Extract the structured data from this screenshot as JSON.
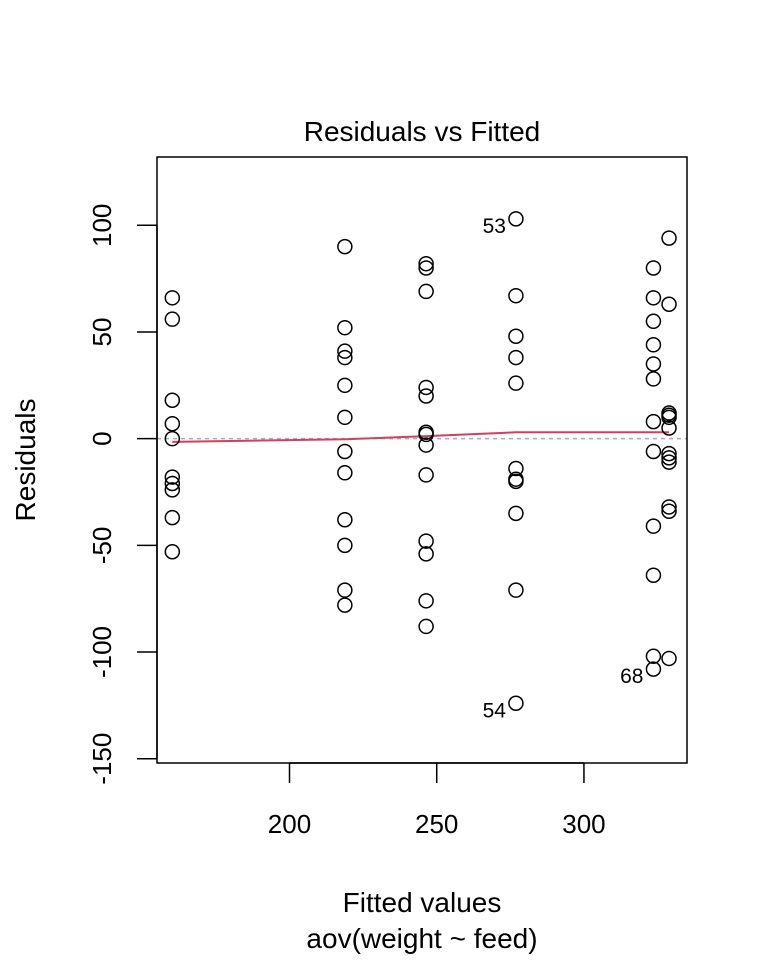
{
  "chart_data": {
    "type": "scatter",
    "title": "Residuals vs Fitted",
    "xlabel": "Fitted values",
    "sublabel": "aov(weight ~ feed)",
    "ylabel": "Residuals",
    "xlim": [
      155,
      335
    ],
    "ylim": [
      -152,
      132
    ],
    "xticks": [
      200,
      250,
      300
    ],
    "yticks": [
      -150,
      -100,
      -50,
      0,
      50,
      100
    ],
    "grid": false,
    "reference_line_y": 0,
    "reference_color": "#A9A9C0",
    "smooth_color": "#D1415E",
    "point_color": "#000000",
    "smooth_line": [
      {
        "x": 160.2,
        "y": -1.5
      },
      {
        "x": 218.8,
        "y": -0.3
      },
      {
        "x": 246.4,
        "y": 1.2
      },
      {
        "x": 276.9,
        "y": 3.0
      },
      {
        "x": 323.6,
        "y": 3.0
      },
      {
        "x": 328.9,
        "y": 3.0
      }
    ],
    "points": [
      {
        "x": 160.2,
        "y": 66
      },
      {
        "x": 160.2,
        "y": 56
      },
      {
        "x": 160.2,
        "y": 18
      },
      {
        "x": 160.2,
        "y": 7
      },
      {
        "x": 160.2,
        "y": 0
      },
      {
        "x": 160.2,
        "y": -18
      },
      {
        "x": 160.2,
        "y": -21
      },
      {
        "x": 160.2,
        "y": -24
      },
      {
        "x": 160.2,
        "y": -37
      },
      {
        "x": 160.2,
        "y": -53
      },
      {
        "x": 218.8,
        "y": 90
      },
      {
        "x": 218.8,
        "y": 52
      },
      {
        "x": 218.8,
        "y": 41
      },
      {
        "x": 218.8,
        "y": 38
      },
      {
        "x": 218.8,
        "y": 25
      },
      {
        "x": 218.8,
        "y": 10
      },
      {
        "x": 218.8,
        "y": -6
      },
      {
        "x": 218.8,
        "y": -16
      },
      {
        "x": 218.8,
        "y": -38
      },
      {
        "x": 218.8,
        "y": -50
      },
      {
        "x": 218.8,
        "y": -71
      },
      {
        "x": 218.8,
        "y": -78
      },
      {
        "x": 246.4,
        "y": 82
      },
      {
        "x": 246.4,
        "y": 80
      },
      {
        "x": 246.4,
        "y": 69
      },
      {
        "x": 246.4,
        "y": 24
      },
      {
        "x": 246.4,
        "y": 20
      },
      {
        "x": 246.4,
        "y": 3
      },
      {
        "x": 246.4,
        "y": 2
      },
      {
        "x": 246.4,
        "y": -3
      },
      {
        "x": 246.4,
        "y": -17
      },
      {
        "x": 246.4,
        "y": -48
      },
      {
        "x": 246.4,
        "y": -54
      },
      {
        "x": 246.4,
        "y": -76
      },
      {
        "x": 246.4,
        "y": -88
      },
      {
        "x": 276.9,
        "y": 103
      },
      {
        "x": 276.9,
        "y": 67
      },
      {
        "x": 276.9,
        "y": 48
      },
      {
        "x": 276.9,
        "y": 38
      },
      {
        "x": 276.9,
        "y": 26
      },
      {
        "x": 276.9,
        "y": -14
      },
      {
        "x": 276.9,
        "y": -19
      },
      {
        "x": 276.9,
        "y": -20
      },
      {
        "x": 276.9,
        "y": -35
      },
      {
        "x": 276.9,
        "y": -71
      },
      {
        "x": 276.9,
        "y": -124
      },
      {
        "x": 323.6,
        "y": 80
      },
      {
        "x": 323.6,
        "y": 66
      },
      {
        "x": 323.6,
        "y": 55
      },
      {
        "x": 323.6,
        "y": 44
      },
      {
        "x": 323.6,
        "y": 35
      },
      {
        "x": 323.6,
        "y": 28
      },
      {
        "x": 323.6,
        "y": 8
      },
      {
        "x": 323.6,
        "y": -6
      },
      {
        "x": 323.6,
        "y": -41
      },
      {
        "x": 323.6,
        "y": -64
      },
      {
        "x": 323.6,
        "y": -102
      },
      {
        "x": 323.6,
        "y": -108
      },
      {
        "x": 328.9,
        "y": 94
      },
      {
        "x": 328.9,
        "y": 63
      },
      {
        "x": 328.9,
        "y": 12
      },
      {
        "x": 328.9,
        "y": 11
      },
      {
        "x": 328.9,
        "y": 10
      },
      {
        "x": 328.9,
        "y": 5
      },
      {
        "x": 328.9,
        "y": -7
      },
      {
        "x": 328.9,
        "y": -9
      },
      {
        "x": 328.9,
        "y": -11
      },
      {
        "x": 328.9,
        "y": -32
      },
      {
        "x": 328.9,
        "y": -34
      },
      {
        "x": 328.9,
        "y": -103
      }
    ],
    "point_labels": [
      {
        "text": "53",
        "x": 276.9,
        "y": 103
      },
      {
        "text": "54",
        "x": 276.9,
        "y": -124
      },
      {
        "text": "68",
        "x": 323.6,
        "y": -108
      }
    ]
  }
}
